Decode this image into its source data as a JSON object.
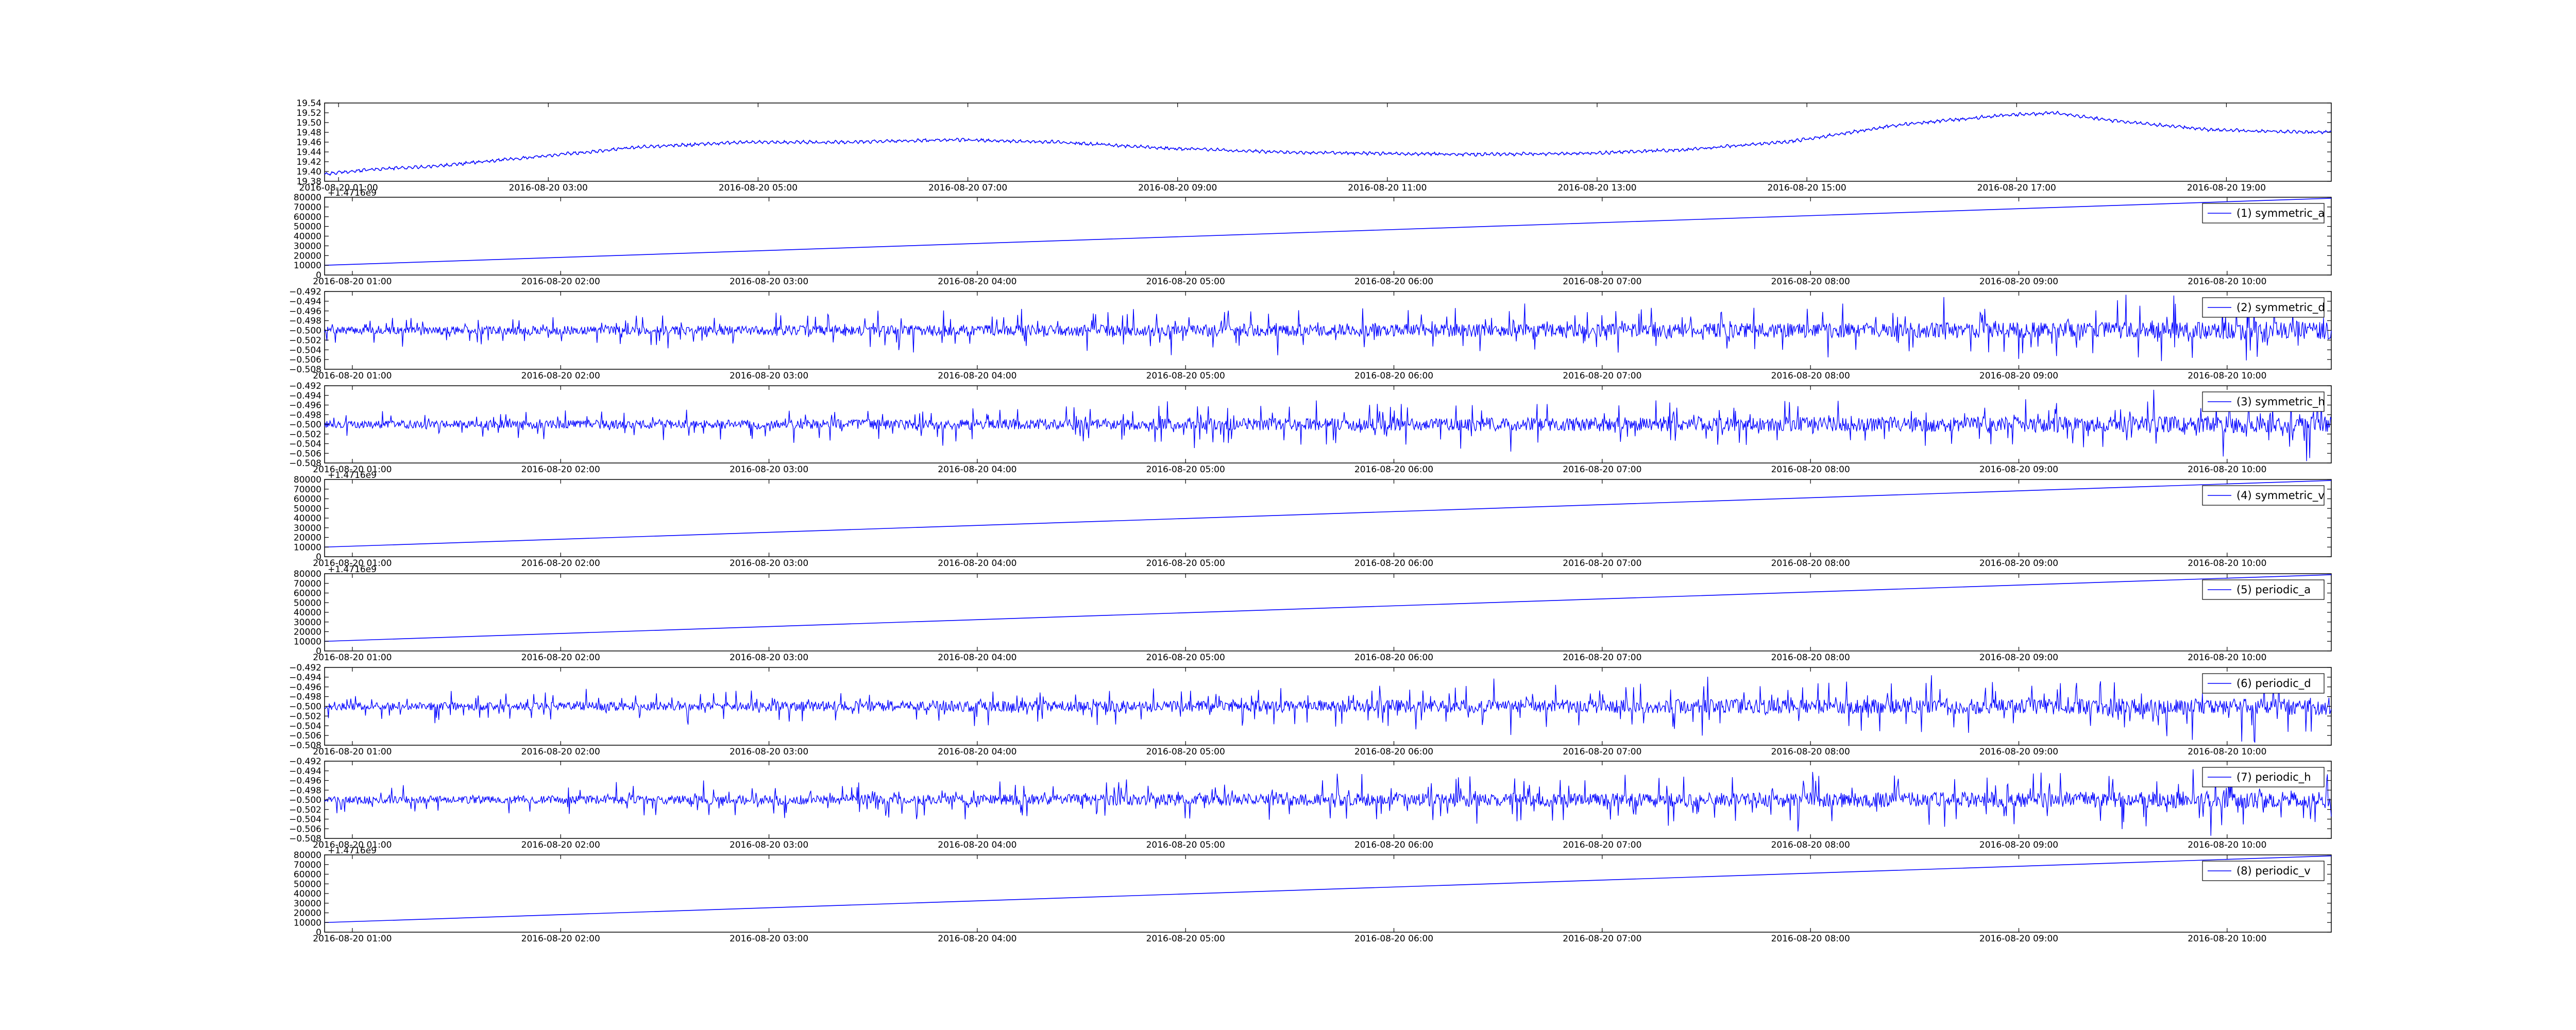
{
  "figure": {
    "line_color": "#0000ff",
    "background": "#ffffff",
    "grid": false
  },
  "chart_data": [
    {
      "type": "line",
      "title": "",
      "legend": null,
      "x_ticks": [
        "2016-08-20 01:00",
        "2016-08-20 03:00",
        "2016-08-20 05:00",
        "2016-08-20 07:00",
        "2016-08-20 09:00",
        "2016-08-20 11:00",
        "2016-08-20 13:00",
        "2016-08-20 15:00",
        "2016-08-20 17:00",
        "2016-08-20 19:00"
      ],
      "ylim": [
        19.38,
        19.54
      ],
      "y_ticks": [
        "19.38",
        "19.40",
        "19.42",
        "19.44",
        "19.46",
        "19.48",
        "19.50",
        "19.52",
        "19.54"
      ],
      "offset_text": "",
      "series": [
        {
          "x_range": [
            "2016-08-20 00:52",
            "2016-08-20 20:00"
          ],
          "profile_x_hours_from_start": [
            0,
            0.5,
            1,
            1.5,
            2,
            2.5,
            3,
            3.5,
            4,
            5,
            6,
            7,
            8,
            9,
            10,
            11,
            12,
            13,
            14,
            15,
            16,
            16.5,
            17,
            18,
            19,
            19.13
          ],
          "profile_y": [
            19.395,
            19.405,
            19.41,
            19.42,
            19.43,
            19.44,
            19.45,
            19.455,
            19.46,
            19.46,
            19.465,
            19.46,
            19.448,
            19.44,
            19.437,
            19.435,
            19.437,
            19.445,
            19.462,
            19.495,
            19.515,
            19.52,
            19.505,
            19.485,
            19.48,
            19.482
          ],
          "noise_amplitude": 0.004
        }
      ]
    },
    {
      "type": "line",
      "legend": "(1) symmetric_a",
      "x_ticks": [
        "2016-08-20 01:00",
        "2016-08-20 02:00",
        "2016-08-20 03:00",
        "2016-08-20 04:00",
        "2016-08-20 05:00",
        "2016-08-20 06:00",
        "2016-08-20 07:00",
        "2016-08-20 08:00",
        "2016-08-20 09:00",
        "2016-08-20 10:00"
      ],
      "ylim": [
        0,
        80000
      ],
      "y_ticks": [
        "0",
        "10000",
        "20000",
        "30000",
        "40000",
        "50000",
        "60000",
        "70000",
        "80000"
      ],
      "offset_text": "+1.4716e9",
      "series": [
        {
          "x_range": [
            "2016-08-20 00:52",
            "2016-08-20 10:30"
          ],
          "y_range": [
            10000,
            79000
          ],
          "kind": "ramp"
        }
      ]
    },
    {
      "type": "line",
      "legend": "(2) symmetric_d",
      "x_ticks": [
        "2016-08-20 01:00",
        "2016-08-20 02:00",
        "2016-08-20 03:00",
        "2016-08-20 04:00",
        "2016-08-20 05:00",
        "2016-08-20 06:00",
        "2016-08-20 07:00",
        "2016-08-20 08:00",
        "2016-08-20 09:00",
        "2016-08-20 10:00"
      ],
      "ylim": [
        -0.508,
        -0.492
      ],
      "y_ticks": [
        "−0.508",
        "−0.506",
        "−0.504",
        "−0.502",
        "−0.500",
        "−0.498",
        "−0.496",
        "−0.494",
        "−0.492"
      ],
      "offset_text": "",
      "series": [
        {
          "x_range": [
            "2016-08-20 00:52",
            "2016-08-20 10:30"
          ],
          "center": -0.5,
          "kind": "noise",
          "amp_start": 0.0025,
          "amp_end": 0.006,
          "seed": 7
        }
      ]
    },
    {
      "type": "line",
      "legend": "(3) symmetric_h",
      "x_ticks": [
        "2016-08-20 01:00",
        "2016-08-20 02:00",
        "2016-08-20 03:00",
        "2016-08-20 04:00",
        "2016-08-20 05:00",
        "2016-08-20 06:00",
        "2016-08-20 07:00",
        "2016-08-20 08:00",
        "2016-08-20 09:00",
        "2016-08-20 10:00"
      ],
      "ylim": [
        -0.508,
        -0.492
      ],
      "y_ticks": [
        "−0.508",
        "−0.506",
        "−0.504",
        "−0.502",
        "−0.500",
        "−0.498",
        "−0.496",
        "−0.494",
        "−0.492"
      ],
      "offset_text": "",
      "series": [
        {
          "x_range": [
            "2016-08-20 00:52",
            "2016-08-20 10:30"
          ],
          "center": -0.5,
          "kind": "noise",
          "amp_start": 0.0025,
          "amp_end": 0.006,
          "seed": 13
        }
      ]
    },
    {
      "type": "line",
      "legend": "(4) symmetric_v",
      "x_ticks": [
        "2016-08-20 01:00",
        "2016-08-20 02:00",
        "2016-08-20 03:00",
        "2016-08-20 04:00",
        "2016-08-20 05:00",
        "2016-08-20 06:00",
        "2016-08-20 07:00",
        "2016-08-20 08:00",
        "2016-08-20 09:00",
        "2016-08-20 10:00"
      ],
      "ylim": [
        0,
        80000
      ],
      "y_ticks": [
        "0",
        "10000",
        "20000",
        "30000",
        "40000",
        "50000",
        "60000",
        "70000",
        "80000"
      ],
      "offset_text": "+1.4716e9",
      "series": [
        {
          "x_range": [
            "2016-08-20 00:52",
            "2016-08-20 10:30"
          ],
          "y_range": [
            10000,
            79000
          ],
          "kind": "ramp"
        }
      ]
    },
    {
      "type": "line",
      "legend": "(5) periodic_a",
      "x_ticks": [
        "2016-08-20 01:00",
        "2016-08-20 02:00",
        "2016-08-20 03:00",
        "2016-08-20 04:00",
        "2016-08-20 05:00",
        "2016-08-20 06:00",
        "2016-08-20 07:00",
        "2016-08-20 08:00",
        "2016-08-20 09:00",
        "2016-08-20 10:00"
      ],
      "ylim": [
        0,
        80000
      ],
      "y_ticks": [
        "0",
        "10000",
        "20000",
        "30000",
        "40000",
        "50000",
        "60000",
        "70000",
        "80000"
      ],
      "offset_text": "+1.4716e9",
      "series": [
        {
          "x_range": [
            "2016-08-20 00:52",
            "2016-08-20 10:30"
          ],
          "y_range": [
            10000,
            79000
          ],
          "kind": "ramp"
        }
      ]
    },
    {
      "type": "line",
      "legend": "(6) periodic_d",
      "x_ticks": [
        "2016-08-20 01:00",
        "2016-08-20 02:00",
        "2016-08-20 03:00",
        "2016-08-20 04:00",
        "2016-08-20 05:00",
        "2016-08-20 06:00",
        "2016-08-20 07:00",
        "2016-08-20 08:00",
        "2016-08-20 09:00",
        "2016-08-20 10:00"
      ],
      "ylim": [
        -0.508,
        -0.492
      ],
      "y_ticks": [
        "−0.508",
        "−0.506",
        "−0.504",
        "−0.502",
        "−0.500",
        "−0.498",
        "−0.496",
        "−0.494",
        "−0.492"
      ],
      "offset_text": "",
      "series": [
        {
          "x_range": [
            "2016-08-20 00:52",
            "2016-08-20 10:30"
          ],
          "center": -0.5,
          "kind": "noise",
          "amp_start": 0.0025,
          "amp_end": 0.006,
          "seed": 21
        }
      ]
    },
    {
      "type": "line",
      "legend": "(7) periodic_h",
      "x_ticks": [
        "2016-08-20 01:00",
        "2016-08-20 02:00",
        "2016-08-20 03:00",
        "2016-08-20 04:00",
        "2016-08-20 05:00",
        "2016-08-20 06:00",
        "2016-08-20 07:00",
        "2016-08-20 08:00",
        "2016-08-20 09:00",
        "2016-08-20 10:00"
      ],
      "ylim": [
        -0.508,
        -0.492
      ],
      "y_ticks": [
        "−0.508",
        "−0.506",
        "−0.504",
        "−0.502",
        "−0.500",
        "−0.498",
        "−0.496",
        "−0.494",
        "−0.492"
      ],
      "offset_text": "",
      "series": [
        {
          "x_range": [
            "2016-08-20 00:52",
            "2016-08-20 10:30"
          ],
          "center": -0.5,
          "kind": "noise",
          "amp_start": 0.0025,
          "amp_end": 0.006,
          "seed": 33
        }
      ]
    },
    {
      "type": "line",
      "legend": "(8) periodic_v",
      "x_ticks": [
        "2016-08-20 01:00",
        "2016-08-20 02:00",
        "2016-08-20 03:00",
        "2016-08-20 04:00",
        "2016-08-20 05:00",
        "2016-08-20 06:00",
        "2016-08-20 07:00",
        "2016-08-20 08:00",
        "2016-08-20 09:00",
        "2016-08-20 10:00"
      ],
      "ylim": [
        0,
        80000
      ],
      "y_ticks": [
        "0",
        "10000",
        "20000",
        "30000",
        "40000",
        "50000",
        "60000",
        "70000",
        "80000"
      ],
      "offset_text": "+1.4716e9",
      "series": [
        {
          "x_range": [
            "2016-08-20 00:52",
            "2016-08-20 10:30"
          ],
          "y_range": [
            10000,
            79000
          ],
          "kind": "ramp"
        }
      ]
    }
  ]
}
